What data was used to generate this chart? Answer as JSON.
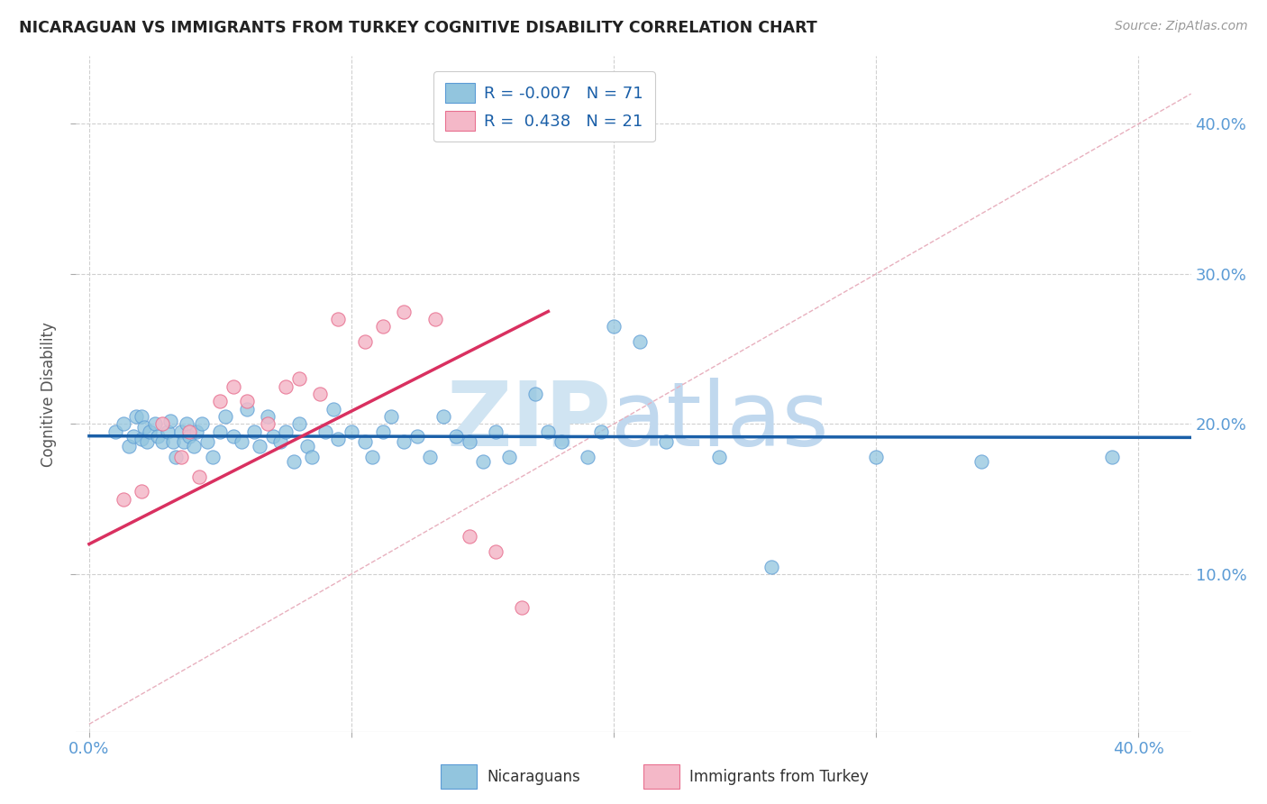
{
  "title": "NICARAGUAN VS IMMIGRANTS FROM TURKEY COGNITIVE DISABILITY CORRELATION CHART",
  "source": "Source: ZipAtlas.com",
  "ylabel": "Cognitive Disability",
  "xlim": [
    -0.005,
    0.42
  ],
  "ylim": [
    -0.005,
    0.445
  ],
  "xticks": [
    0.0,
    0.1,
    0.2,
    0.3,
    0.4
  ],
  "yticks": [
    0.1,
    0.2,
    0.3,
    0.4
  ],
  "ytick_labels": [
    "10.0%",
    "20.0%",
    "30.0%",
    "40.0%"
  ],
  "xtick_labels_bottom": [
    "0.0%",
    "",
    "",
    "",
    "40.0%"
  ],
  "blue_color": "#92c5de",
  "pink_color": "#f4b8c8",
  "blue_edge": "#5b9bd5",
  "pink_edge": "#e87090",
  "blue_R": -0.007,
  "blue_N": 71,
  "pink_R": 0.438,
  "pink_N": 21,
  "blue_scatter_x": [
    0.01,
    0.013,
    0.015,
    0.017,
    0.018,
    0.02,
    0.02,
    0.021,
    0.022,
    0.023,
    0.025,
    0.026,
    0.028,
    0.03,
    0.031,
    0.032,
    0.033,
    0.035,
    0.036,
    0.037,
    0.038,
    0.04,
    0.041,
    0.043,
    0.045,
    0.047,
    0.05,
    0.052,
    0.055,
    0.058,
    0.06,
    0.063,
    0.065,
    0.068,
    0.07,
    0.073,
    0.075,
    0.078,
    0.08,
    0.083,
    0.085,
    0.09,
    0.093,
    0.095,
    0.1,
    0.105,
    0.108,
    0.112,
    0.115,
    0.12,
    0.125,
    0.13,
    0.135,
    0.14,
    0.145,
    0.15,
    0.155,
    0.16,
    0.17,
    0.175,
    0.18,
    0.19,
    0.195,
    0.2,
    0.21,
    0.22,
    0.24,
    0.26,
    0.3,
    0.34,
    0.39
  ],
  "blue_scatter_y": [
    0.195,
    0.2,
    0.185,
    0.192,
    0.205,
    0.19,
    0.205,
    0.198,
    0.188,
    0.195,
    0.2,
    0.192,
    0.188,
    0.195,
    0.202,
    0.188,
    0.178,
    0.195,
    0.188,
    0.2,
    0.192,
    0.185,
    0.195,
    0.2,
    0.188,
    0.178,
    0.195,
    0.205,
    0.192,
    0.188,
    0.21,
    0.195,
    0.185,
    0.205,
    0.192,
    0.188,
    0.195,
    0.175,
    0.2,
    0.185,
    0.178,
    0.195,
    0.21,
    0.19,
    0.195,
    0.188,
    0.178,
    0.195,
    0.205,
    0.188,
    0.192,
    0.178,
    0.205,
    0.192,
    0.188,
    0.175,
    0.195,
    0.178,
    0.22,
    0.195,
    0.188,
    0.178,
    0.195,
    0.265,
    0.255,
    0.188,
    0.178,
    0.105,
    0.178,
    0.175,
    0.178
  ],
  "pink_scatter_x": [
    0.013,
    0.02,
    0.028,
    0.035,
    0.038,
    0.042,
    0.05,
    0.055,
    0.06,
    0.068,
    0.075,
    0.08,
    0.088,
    0.095,
    0.105,
    0.112,
    0.12,
    0.132,
    0.145,
    0.155,
    0.165
  ],
  "pink_scatter_y": [
    0.15,
    0.155,
    0.2,
    0.178,
    0.195,
    0.165,
    0.215,
    0.225,
    0.215,
    0.2,
    0.225,
    0.23,
    0.22,
    0.27,
    0.255,
    0.265,
    0.275,
    0.27,
    0.125,
    0.115,
    0.078
  ],
  "blue_line_x": [
    0.0,
    0.42
  ],
  "blue_line_y": [
    0.192,
    0.191
  ],
  "pink_line_x": [
    0.0,
    0.175
  ],
  "pink_line_y": [
    0.12,
    0.275
  ],
  "diag_line_x": [
    0.0,
    0.42
  ],
  "diag_line_y": [
    0.0,
    0.42
  ],
  "background_color": "#ffffff",
  "grid_color": "#d0d0d0",
  "title_color": "#222222",
  "tick_label_color": "#5b9bd5",
  "ylabel_color": "#555555",
  "watermark_zip_color": "#d0e4f2",
  "watermark_atlas_color": "#c0d8ee"
}
